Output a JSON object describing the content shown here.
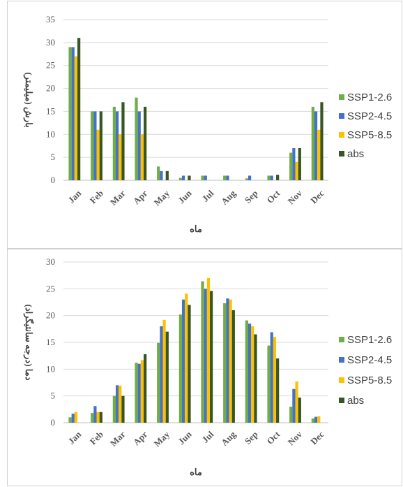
{
  "chart_data": [
    {
      "type": "bar",
      "title": "",
      "xlabel": "ماه",
      "ylabel": "بارش (میلیمتر)",
      "ylim": [
        0,
        35
      ],
      "yticks": [
        0,
        5,
        10,
        15,
        20,
        25,
        30,
        35
      ],
      "grid": true,
      "legend_position": "right",
      "categories": [
        "Jan",
        "Feb",
        "Mar",
        "Apr",
        "May",
        "Jun",
        "Jul",
        "Aug",
        "Sep",
        "Oct",
        "Nov",
        "Dec"
      ],
      "series": [
        {
          "name": "SSP1-2.6",
          "color": "#70ad47",
          "values": [
            29,
            15,
            16,
            18,
            3,
            0.5,
            1,
            1,
            0.4,
            1,
            6,
            16
          ]
        },
        {
          "name": "SSP2-4.5",
          "color": "#4472c4",
          "values": [
            29,
            15,
            15,
            15,
            2,
            1,
            1,
            1,
            1,
            1,
            7,
            15
          ]
        },
        {
          "name": "SSP5-8.5",
          "color": "#ffc000",
          "values": [
            27,
            11,
            10,
            10,
            0,
            0,
            0,
            0,
            0,
            0,
            4,
            11
          ]
        },
        {
          "name": "abs",
          "color": "#375623",
          "values": [
            31,
            15,
            17,
            16,
            2,
            1,
            0,
            0,
            0,
            1.2,
            7,
            17
          ]
        }
      ]
    },
    {
      "type": "bar",
      "title": "",
      "xlabel": "ماه",
      "ylabel": "دما (درجه سانتیگراد)",
      "ylim": [
        0,
        30
      ],
      "yticks": [
        0,
        5,
        10,
        15,
        20,
        25,
        30
      ],
      "grid": true,
      "legend_position": "right",
      "categories": [
        "Jan",
        "Feb",
        "Mar",
        "Apr",
        "May",
        "Jun",
        "Jul",
        "Aug",
        "Sep",
        "Oct",
        "Nov",
        "Dec"
      ],
      "series": [
        {
          "name": "SSP1-2.6",
          "color": "#70ad47",
          "values": [
            1.0,
            1.8,
            5.0,
            11.2,
            14.9,
            20.2,
            26.4,
            22.3,
            19.1,
            14.4,
            3.0,
            0.8
          ]
        },
        {
          "name": "SSP2-4.5",
          "color": "#4472c4",
          "values": [
            1.7,
            3.1,
            7.0,
            11.0,
            18.0,
            23.0,
            25.0,
            23.2,
            18.5,
            16.9,
            6.3,
            1.1
          ]
        },
        {
          "name": "SSP5-8.5",
          "color": "#ffc000",
          "values": [
            2.0,
            2.0,
            6.9,
            11.7,
            19.2,
            24.1,
            27.0,
            23.0,
            18.0,
            16.0,
            7.7,
            1.2
          ]
        },
        {
          "name": "abs",
          "color": "#375623",
          "values": [
            0,
            2.0,
            5.0,
            12.8,
            17.0,
            22.0,
            24.6,
            21.0,
            16.5,
            12.0,
            4.7,
            0
          ]
        }
      ]
    }
  ]
}
